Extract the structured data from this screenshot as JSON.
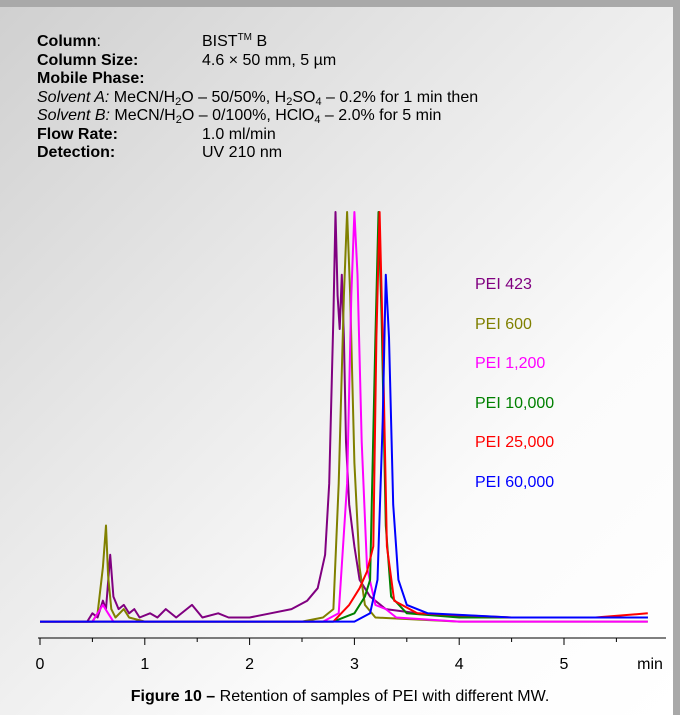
{
  "conditions": {
    "column_label": "Column",
    "column_sep": ":",
    "column_value": "BIST",
    "column_sup": "TM",
    "column_suffix": " B",
    "size_label": "Column Size:",
    "size_value": "4.6 × 50 mm, 5 µm",
    "mobile_label": "Mobile Phase:",
    "solvent_a_label": "Solvent A:",
    "solvent_a_1": " MeCN/H",
    "solvent_a_2": "O – 50/50%, H",
    "solvent_a_3": "SO",
    "solvent_a_4": " – 0.2% for 1 min then",
    "solvent_b_label": "Solvent B:",
    "solvent_b_1": " MeCN/H",
    "solvent_b_2": "O – 0/100%, HClO",
    "solvent_b_3": " – 2.0%  for 5 min",
    "sub_2": "2",
    "sub_4": "4",
    "flow_label": "Flow Rate:",
    "flow_value": "1.0 ml/min",
    "detection_label": "Detection:",
    "detection_value": "UV  210 nm"
  },
  "caption": {
    "bold": "Figure 10 –",
    "text": " Retention of samples of PEI with different MW."
  },
  "chart_data": {
    "type": "line",
    "xlabel": "min",
    "ylabel": "",
    "xlim": [
      0,
      5.8
    ],
    "ylim": [
      0,
      1.0
    ],
    "xticks": [
      0,
      1,
      2,
      3,
      4,
      5
    ],
    "grid": false,
    "legend_position": "right",
    "series": [
      {
        "name": "PEI 423",
        "color": "#800080",
        "points": [
          [
            0,
            0.02
          ],
          [
            0.45,
            0.02
          ],
          [
            0.5,
            0.04
          ],
          [
            0.55,
            0.03
          ],
          [
            0.6,
            0.07
          ],
          [
            0.63,
            0.05
          ],
          [
            0.67,
            0.18
          ],
          [
            0.7,
            0.08
          ],
          [
            0.75,
            0.05
          ],
          [
            0.8,
            0.06
          ],
          [
            0.85,
            0.04
          ],
          [
            0.9,
            0.05
          ],
          [
            0.95,
            0.03
          ],
          [
            1.05,
            0.04
          ],
          [
            1.12,
            0.03
          ],
          [
            1.2,
            0.05
          ],
          [
            1.3,
            0.03
          ],
          [
            1.45,
            0.06
          ],
          [
            1.55,
            0.03
          ],
          [
            1.7,
            0.04
          ],
          [
            1.8,
            0.03
          ],
          [
            2.0,
            0.03
          ],
          [
            2.2,
            0.04
          ],
          [
            2.4,
            0.05
          ],
          [
            2.55,
            0.07
          ],
          [
            2.65,
            0.1
          ],
          [
            2.72,
            0.18
          ],
          [
            2.76,
            0.35
          ],
          [
            2.78,
            0.55
          ],
          [
            2.8,
            0.75
          ],
          [
            2.82,
            1.0
          ],
          [
            2.84,
            0.8
          ],
          [
            2.86,
            0.72
          ],
          [
            2.88,
            0.85
          ],
          [
            2.9,
            0.7
          ],
          [
            2.92,
            0.45
          ],
          [
            2.95,
            0.3
          ],
          [
            3.0,
            0.2
          ],
          [
            3.05,
            0.12
          ],
          [
            3.15,
            0.08
          ],
          [
            3.3,
            0.05
          ],
          [
            3.6,
            0.04
          ],
          [
            4.2,
            0.03
          ],
          [
            5.0,
            0.03
          ],
          [
            5.8,
            0.03
          ]
        ]
      },
      {
        "name": "PEI 600",
        "color": "#808000",
        "points": [
          [
            0,
            0.02
          ],
          [
            0.5,
            0.02
          ],
          [
            0.55,
            0.04
          ],
          [
            0.6,
            0.15
          ],
          [
            0.63,
            0.25
          ],
          [
            0.65,
            0.13
          ],
          [
            0.68,
            0.05
          ],
          [
            0.72,
            0.03
          ],
          [
            0.8,
            0.05
          ],
          [
            0.85,
            0.03
          ],
          [
            1.0,
            0.02
          ],
          [
            2.5,
            0.02
          ],
          [
            2.7,
            0.03
          ],
          [
            2.8,
            0.05
          ],
          [
            2.85,
            0.35
          ],
          [
            2.9,
            0.8
          ],
          [
            2.93,
            1.0
          ],
          [
            2.96,
            0.8
          ],
          [
            3.0,
            0.4
          ],
          [
            3.05,
            0.15
          ],
          [
            3.1,
            0.06
          ],
          [
            3.2,
            0.03
          ],
          [
            4.0,
            0.02
          ],
          [
            5.8,
            0.02
          ]
        ]
      },
      {
        "name": "PEI 1,200",
        "color": "#ff00ff",
        "points": [
          [
            0,
            0.02
          ],
          [
            0.5,
            0.02
          ],
          [
            0.6,
            0.06
          ],
          [
            0.65,
            0.04
          ],
          [
            0.7,
            0.02
          ],
          [
            2.7,
            0.02
          ],
          [
            2.85,
            0.04
          ],
          [
            2.93,
            0.35
          ],
          [
            2.97,
            0.8
          ],
          [
            3.0,
            1.0
          ],
          [
            3.03,
            0.85
          ],
          [
            3.07,
            0.45
          ],
          [
            3.12,
            0.15
          ],
          [
            3.2,
            0.06
          ],
          [
            3.3,
            0.05
          ],
          [
            3.4,
            0.03
          ],
          [
            4.0,
            0.02
          ],
          [
            5.8,
            0.02
          ]
        ]
      },
      {
        "name": "PEI 10,000",
        "color": "#008000",
        "points": [
          [
            0,
            0.02
          ],
          [
            0.6,
            0.02
          ],
          [
            2.8,
            0.02
          ],
          [
            3.0,
            0.04
          ],
          [
            3.1,
            0.08
          ],
          [
            3.15,
            0.12
          ],
          [
            3.2,
            0.7
          ],
          [
            3.23,
            1.0
          ],
          [
            3.26,
            0.75
          ],
          [
            3.3,
            0.25
          ],
          [
            3.35,
            0.08
          ],
          [
            3.5,
            0.04
          ],
          [
            4.0,
            0.03
          ],
          [
            5.0,
            0.03
          ],
          [
            5.8,
            0.03
          ]
        ]
      },
      {
        "name": "PEI 25,000",
        "color": "#ff0000",
        "points": [
          [
            0,
            0.02
          ],
          [
            0.6,
            0.02
          ],
          [
            2.8,
            0.02
          ],
          [
            2.95,
            0.06
          ],
          [
            3.05,
            0.1
          ],
          [
            3.12,
            0.14
          ],
          [
            3.18,
            0.2
          ],
          [
            3.21,
            0.7
          ],
          [
            3.24,
            1.0
          ],
          [
            3.27,
            0.7
          ],
          [
            3.31,
            0.2
          ],
          [
            3.38,
            0.07
          ],
          [
            3.6,
            0.04
          ],
          [
            4.5,
            0.03
          ],
          [
            5.3,
            0.03
          ],
          [
            5.8,
            0.04
          ]
        ]
      },
      {
        "name": "PEI 60,000",
        "color": "#0000ff",
        "points": [
          [
            0,
            0.02
          ],
          [
            0.6,
            0.02
          ],
          [
            3.0,
            0.02
          ],
          [
            3.15,
            0.04
          ],
          [
            3.22,
            0.12
          ],
          [
            3.27,
            0.5
          ],
          [
            3.3,
            0.85
          ],
          [
            3.33,
            0.7
          ],
          [
            3.37,
            0.3
          ],
          [
            3.42,
            0.12
          ],
          [
            3.5,
            0.06
          ],
          [
            3.7,
            0.04
          ],
          [
            4.5,
            0.03
          ],
          [
            5.8,
            0.03
          ]
        ]
      }
    ]
  }
}
